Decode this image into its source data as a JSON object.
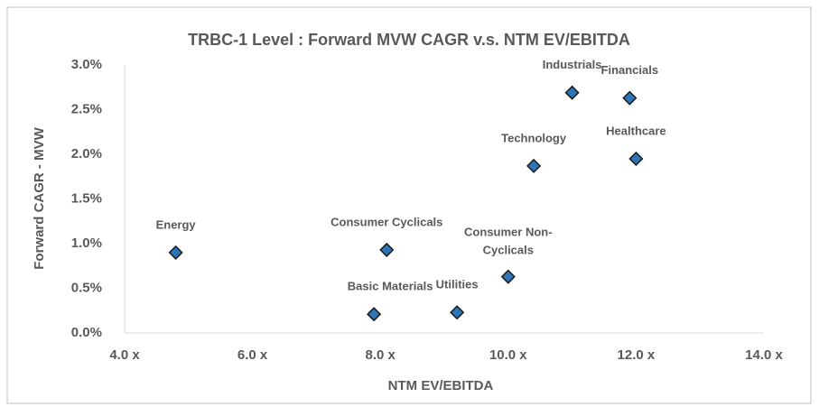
{
  "chart_data": {
    "type": "scatter",
    "title": "TRBC-1 Level : Forward MVW CAGR v.s. NTM EV/EBITDA",
    "x_label": "NTM EV/EBITDA",
    "y_label": "Forward CAGR - MVW",
    "point_labels": [
      "Energy",
      "Consumer Cyclicals",
      "Basic Materials",
      "Utilities",
      "Consumer Non-Cyclicals",
      "Technology",
      "Industrials",
      "Financials",
      "Healthcare"
    ],
    "x": [
      4.8,
      8.1,
      7.9,
      9.2,
      10.0,
      10.4,
      11.0,
      11.9,
      12.0
    ],
    "values": [
      0.9,
      0.93,
      0.21,
      0.23,
      0.63,
      1.87,
      2.69,
      2.63,
      1.95
    ],
    "color": "#2e75b6",
    "xlim": [
      4,
      14
    ],
    "xticks": [
      {
        "value": 4,
        "label": "4.0 x"
      },
      {
        "value": 6,
        "label": "6.0 x"
      },
      {
        "value": 8,
        "label": "8.0 x"
      },
      {
        "value": 10,
        "label": "10.0 x"
      },
      {
        "value": 12,
        "label": "12.0 x"
      },
      {
        "value": 14,
        "label": "14.0 x"
      }
    ],
    "ylim": [
      0,
      3
    ],
    "yticks": [
      {
        "value": 0,
        "label": "0.0%"
      },
      {
        "value": 0.5,
        "label": "0.5%"
      },
      {
        "value": 1,
        "label": "1.0%"
      },
      {
        "value": 1.5,
        "label": "1.5%"
      },
      {
        "value": 2,
        "label": "2.0%"
      },
      {
        "value": 2.5,
        "label": "2.5%"
      },
      {
        "value": 3,
        "label": "3.0%"
      }
    ],
    "grid": false
  }
}
